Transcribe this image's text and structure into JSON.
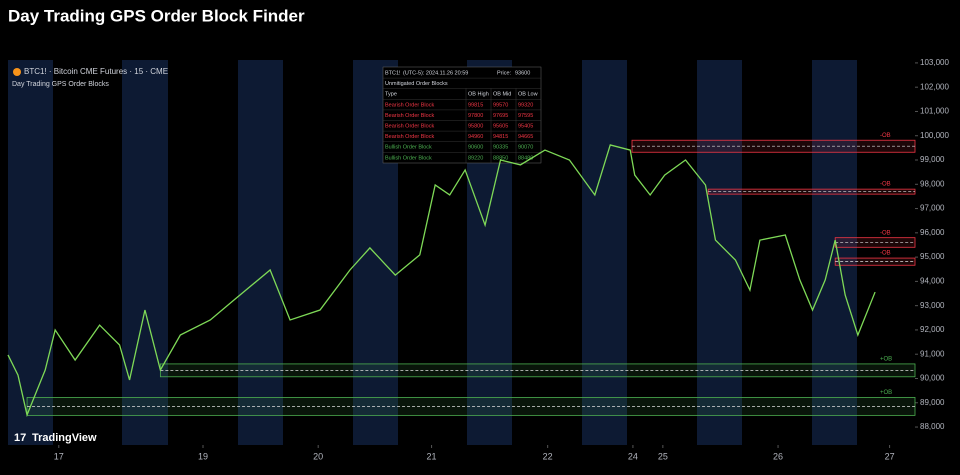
{
  "chart_data": {
    "type": "line",
    "title": "Day Trading GPS Order Block Finder",
    "symbol_label": "BTC1! · Bitcoin CME Futures · 15 · CME",
    "indicator_label": "Day Trading GPS Order Blocks",
    "brand": "TradingView",
    "xlim": [
      0,
      100
    ],
    "xticks": [
      {
        "value": 5.6,
        "label": "17"
      },
      {
        "value": 21.5,
        "label": "19"
      },
      {
        "value": 34.2,
        "label": "20"
      },
      {
        "value": 46.7,
        "label": "21"
      },
      {
        "value": 59.5,
        "label": "22"
      },
      {
        "value": 68.9,
        "label": "24"
      },
      {
        "value": 72.2,
        "label": "25"
      },
      {
        "value": 84.9,
        "label": "26"
      },
      {
        "value": 97.2,
        "label": "27"
      }
    ],
    "ylim": [
      87260,
      103120
    ],
    "yticks": [
      {
        "value": 88000,
        "label": "88,000"
      },
      {
        "value": 89000,
        "label": "89,000"
      },
      {
        "value": 90000,
        "label": "90,000"
      },
      {
        "value": 91000,
        "label": "91,000"
      },
      {
        "value": 92000,
        "label": "92,000"
      },
      {
        "value": 93000,
        "label": "93,000"
      },
      {
        "value": 94000,
        "label": "94,000"
      },
      {
        "value": 95000,
        "label": "95,000"
      },
      {
        "value": 96000,
        "label": "96,000"
      },
      {
        "value": 97000,
        "label": "97,000"
      },
      {
        "value": 98000,
        "label": "98,000"
      },
      {
        "value": 99000,
        "label": "99,000"
      },
      {
        "value": 100000,
        "label": "100,000"
      },
      {
        "value": 101000,
        "label": "101,000"
      },
      {
        "value": 102000,
        "label": "102,000"
      },
      {
        "value": 103000,
        "label": "103,000"
      }
    ],
    "series": [
      {
        "color": "#7ed957",
        "x": [
          0,
          1.1,
          2.1,
          4.1,
          5.2,
          7.4,
          10.1,
          12.3,
          13.4,
          15.1,
          16.8,
          19,
          22.3,
          24.9,
          28.9,
          31.1,
          34.4,
          37.7,
          39.9,
          42.7,
          45.4,
          47.1,
          48.7,
          50.4,
          52.6,
          54.3,
          56.5,
          59.2,
          61.9,
          64.7,
          66.4,
          68.6,
          69.1,
          70.8,
          72.4,
          74.7,
          76.9,
          78,
          80.2,
          81.8,
          82.9,
          85.7,
          87.3,
          88.7,
          90.1,
          91.2,
          92.3,
          93.7,
          95.6
        ],
        "values": [
          90970,
          90140,
          88500,
          90350,
          92000,
          90760,
          92200,
          91380,
          89940,
          92820,
          90350,
          91790,
          92410,
          93230,
          94470,
          92410,
          92820,
          94470,
          95380,
          94260,
          95090,
          97970,
          97560,
          98590,
          96320,
          99000,
          98800,
          99410,
          99000,
          97560,
          99620,
          99410,
          98380,
          97560,
          98380,
          99000,
          97970,
          95700,
          94880,
          93640,
          95700,
          95910,
          94060,
          92820,
          94060,
          95700,
          93440,
          91790,
          93560
        ]
      }
    ],
    "table": {
      "symbol": "BTC1!",
      "time": "(UTC-5): 2024.11.26 20:59",
      "price_label": "Price:",
      "price": 93600,
      "section": "Unmitigated Order Blocks",
      "columns": [
        "Type",
        "OB High",
        "OB Mid",
        "OB Low"
      ],
      "rows": [
        {
          "type": "Bearish Order Block",
          "tag": "-OB",
          "color": "#f23645",
          "start": 68.8,
          "high": 99815,
          "mid": 99570,
          "low": 99320
        },
        {
          "type": "Bearish Order Block",
          "tag": "-OB",
          "color": "#f23645",
          "start": 77.2,
          "high": 97800,
          "mid": 97695,
          "low": 97595
        },
        {
          "type": "Bearish Order Block",
          "tag": "-OB",
          "color": "#f23645",
          "start": 91.2,
          "high": 95800,
          "mid": 95605,
          "low": 95405
        },
        {
          "type": "Bearish Order Block",
          "tag": "-OB",
          "color": "#f23645",
          "start": 91.2,
          "high": 94960,
          "mid": 94815,
          "low": 94665
        },
        {
          "type": "Bullish Order Block",
          "tag": "+OB",
          "color": "#4caf50",
          "start": 16.8,
          "high": 90600,
          "mid": 90335,
          "low": 90070
        },
        {
          "type": "Bullish Order Block",
          "tag": "+OB",
          "color": "#4caf50",
          "start": 2.1,
          "high": 89220,
          "mid": 88850,
          "low": 88480
        }
      ]
    }
  }
}
